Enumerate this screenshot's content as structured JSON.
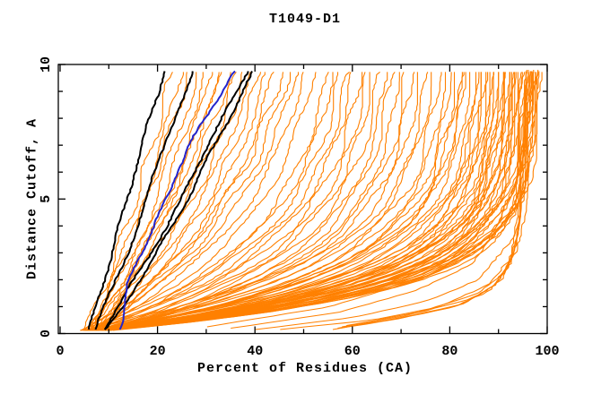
{
  "chart_data": {
    "type": "line",
    "title": "T1049-D1",
    "xlabel": "Percent of Residues (CA)",
    "ylabel": "Distance Cutoff, A",
    "x_axis": {
      "min": 0,
      "max": 100,
      "minor_step": 10,
      "labeled_ticks": [
        0,
        20,
        40,
        60,
        80,
        100
      ]
    },
    "y_axis": {
      "min": 0,
      "max": 10,
      "minor_step": 1,
      "labeled_ticks": [
        0,
        5,
        10
      ]
    },
    "grid": false,
    "legend": null,
    "frame": "box-with-mirrored-inward-ticks",
    "colors": {
      "model_curves": "#ff8000",
      "highlight_black": "#000000",
      "highlight_blue": "#2424cc"
    },
    "series": [
      {
        "id": "orange-model-curves",
        "color": "#ff8000",
        "width": 1.1,
        "style": "params",
        "note": "each curve = [percent_at_cutoff0, percent_at_cutoff10, saturation_shape_k]; x(y) rises from x0 at 0A to xt at 10A",
        "curves": [
          [
            5.2,
            23,
            0.6
          ],
          [
            5.8,
            25,
            0.7
          ],
          [
            6.2,
            26.5,
            0.5
          ],
          [
            6.8,
            28,
            0.8
          ],
          [
            7.2,
            30,
            0.7
          ],
          [
            7.6,
            31,
            0.9
          ],
          [
            8,
            32.5,
            0.8
          ],
          [
            5,
            33.5,
            1
          ],
          [
            5.5,
            35,
            1.1
          ],
          [
            6,
            36.5,
            1.2
          ],
          [
            6.5,
            38,
            1.3
          ],
          [
            7,
            39.5,
            1.4
          ],
          [
            7.5,
            41,
            1.5
          ],
          [
            8,
            42.5,
            1.6
          ],
          [
            8.5,
            44,
            1.7
          ],
          [
            4.8,
            45.5,
            1.8
          ],
          [
            5.3,
            47,
            1.9
          ],
          [
            5.8,
            48.5,
            2
          ],
          [
            6.3,
            50,
            2.2
          ],
          [
            6.8,
            52,
            2.4
          ],
          [
            7.3,
            55,
            2.6
          ],
          [
            4.8,
            56,
            2.8
          ],
          [
            5.2,
            57.5,
            2.9
          ],
          [
            5.6,
            59,
            3
          ],
          [
            6,
            60,
            3.1
          ],
          [
            6.4,
            61.5,
            3.2
          ],
          [
            6.8,
            63,
            3.3
          ],
          [
            7.2,
            64,
            3.4
          ],
          [
            7.6,
            65.5,
            3.5
          ],
          [
            8,
            67,
            3.6
          ],
          [
            8.4,
            68,
            3.7
          ],
          [
            8.8,
            69.5,
            3.8
          ],
          [
            4.9,
            71,
            3.9
          ],
          [
            5.4,
            72,
            4
          ],
          [
            5.9,
            73.5,
            4
          ],
          [
            6.4,
            75,
            4.1
          ],
          [
            6.9,
            76,
            4.1
          ],
          [
            7.4,
            77.5,
            4.2
          ],
          [
            7.9,
            79,
            4.2
          ],
          [
            8.4,
            80,
            4.3
          ],
          [
            8.9,
            81,
            4.3
          ],
          [
            5.1,
            82,
            4.4
          ],
          [
            5.6,
            82.5,
            4.5
          ],
          [
            6.1,
            83,
            4.5
          ],
          [
            6.6,
            84,
            4.6
          ],
          [
            4.6,
            85,
            4.8
          ],
          [
            5.1,
            85.5,
            4.9
          ],
          [
            5.6,
            86,
            5
          ],
          [
            6.1,
            86.5,
            5
          ],
          [
            6.6,
            87,
            5.1
          ],
          [
            7.1,
            87.5,
            5.1
          ],
          [
            7.6,
            88,
            5.2
          ],
          [
            8.1,
            88.5,
            5.2
          ],
          [
            8.6,
            89,
            5.3
          ],
          [
            9.1,
            89.5,
            5.3
          ],
          [
            9.6,
            90,
            5.4
          ],
          [
            4.8,
            90.3,
            5.4
          ],
          [
            5.3,
            90.6,
            5.5
          ],
          [
            5.8,
            91,
            5.5
          ],
          [
            6.3,
            91.3,
            5.6
          ],
          [
            6.8,
            91.6,
            5.6
          ],
          [
            7.3,
            92,
            5.7
          ],
          [
            7.8,
            92.3,
            5.7
          ],
          [
            8.3,
            92.6,
            5.8
          ],
          [
            8.8,
            93,
            5.8
          ],
          [
            9.3,
            93.3,
            5.9
          ],
          [
            9.8,
            93.6,
            5.9
          ],
          [
            5,
            94,
            6
          ],
          [
            5.5,
            94.3,
            6
          ],
          [
            6,
            94.6,
            6.1
          ],
          [
            6.5,
            95,
            6.1
          ],
          [
            7,
            95.3,
            6.2
          ],
          [
            7.5,
            95.6,
            6.2
          ],
          [
            8,
            96,
            6.3
          ],
          [
            8.5,
            96.3,
            6.3
          ],
          [
            9,
            96.6,
            6.4
          ],
          [
            9.5,
            97,
            6.4
          ],
          [
            10,
            97.3,
            6.5
          ],
          [
            10.4,
            97.6,
            6.5
          ],
          [
            10.8,
            98,
            6.6
          ],
          [
            5.9,
            98,
            6.2
          ]
        ]
      },
      {
        "id": "orange-best-model-bundle",
        "color": "#ff8000",
        "width": 1.1,
        "style": "anchors",
        "curves": [
          {
            "y": [
              0.15,
              0.5,
              1.0,
              1.6,
              2.5,
              4,
              6,
              9.8
            ],
            "x": [
              56,
              68,
              81,
              88,
              92,
              94,
              94.7,
              95.2
            ]
          },
          {
            "y": [
              0.2,
              0.6,
              1.1,
              1.8,
              2.8,
              4.5,
              9.8
            ],
            "x": [
              57,
              70,
              83,
              89.5,
              92.8,
              94.5,
              95.8
            ]
          },
          {
            "y": [
              0.25,
              0.7,
              1.3,
              2.0,
              3.2,
              5,
              9.8
            ],
            "x": [
              58,
              72,
              84.5,
              90.5,
              93.5,
              95,
              96.3
            ]
          },
          {
            "y": [
              0.3,
              0.8,
              1.5,
              2.3,
              3.6,
              6,
              9.8
            ],
            "x": [
              59,
              74,
              86,
              91,
              94,
              95.5,
              96.8
            ]
          },
          {
            "y": [
              0.2,
              0.55,
              1.05,
              1.7,
              2.6,
              4.2,
              9.8
            ],
            "x": [
              56.5,
              69,
              82,
              88.7,
              92.4,
              94.2,
              95.5
            ]
          },
          {
            "y": [
              0.15,
              0.6,
              1.2,
              2,
              3.5,
              9.8
            ],
            "x": [
              40,
              60,
              75,
              86,
              93,
              97.2
            ]
          },
          {
            "y": [
              0.2,
              0.8,
              1.6,
              2.6,
              4.5,
              9.8
            ],
            "x": [
              35,
              57,
              73,
              85,
              92.5,
              97.8
            ]
          },
          {
            "y": [
              0.15,
              0.5,
              1,
              1.8,
              3,
              5,
              9.8
            ],
            "x": [
              45,
              64,
              78,
              88,
              93.5,
              95.8,
              98
            ]
          },
          {
            "y": [
              0.25,
              1,
              2,
              3.2,
              5.5,
              9.8
            ],
            "x": [
              30,
              55,
              74,
              87,
              94,
              96.5
            ]
          }
        ]
      },
      {
        "id": "black-highlight-curves",
        "color": "#000000",
        "width": 2,
        "style": "anchors",
        "curves": [
          {
            "y": [
              0.15,
              1,
              2,
              3,
              4,
              5,
              6,
              7,
              8,
              9,
              9.8
            ],
            "x": [
              6.0,
              7.5,
              9.0,
              10.6,
              12.2,
              13.8,
              15.2,
              16.8,
              18.4,
              20.2,
              21.3
            ]
          },
          {
            "y": [
              0.15,
              1,
              2,
              3,
              4,
              5,
              6,
              7,
              8,
              9,
              9.8
            ],
            "x": [
              7.3,
              9.2,
              11.5,
              13.8,
              15.8,
              17.7,
              19.5,
              21.4,
              23.4,
              25.7,
              27.6
            ]
          },
          {
            "y": [
              0.15,
              1,
              2,
              3,
              4,
              5,
              6,
              7,
              8,
              9,
              9.8
            ],
            "x": [
              8.8,
              12.0,
              15.2,
              18.6,
              21.9,
              25.0,
              27.6,
              30.2,
              33.2,
              36.4,
              38.7
            ]
          },
          {
            "y": [
              0.15,
              1,
              2,
              3,
              4,
              5,
              6,
              7,
              8,
              9,
              9.8
            ],
            "x": [
              9.5,
              13.0,
              16.3,
              19.8,
              23.1,
              26.2,
              28.9,
              31.7,
              34.7,
              37.7,
              39.9
            ]
          }
        ]
      },
      {
        "id": "blue-highlight-curve",
        "color": "#2424cc",
        "width": 2,
        "style": "anchors",
        "curves": [
          {
            "y": [
              0.15,
              1,
              2,
              3,
              4,
              5,
              6,
              7,
              8,
              9,
              9.8
            ],
            "x": [
              12.3,
              13.0,
              14.2,
              16.6,
              19.3,
              21.8,
              24.0,
              26.6,
              29.6,
              33.3,
              36.2
            ]
          }
        ]
      }
    ]
  }
}
